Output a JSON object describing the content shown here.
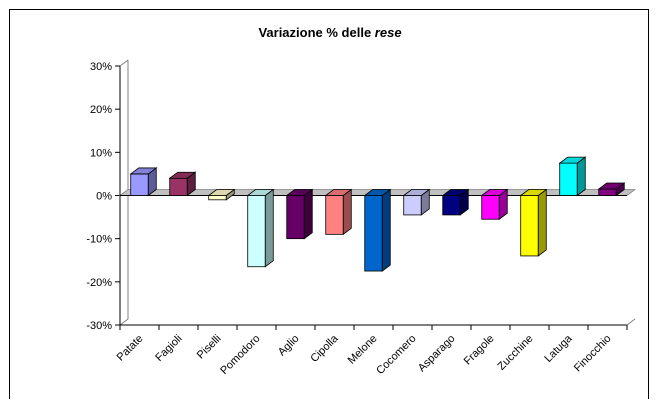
{
  "chart_data": {
    "type": "bar",
    "title_main": "Variazione % delle",
    "title_emph": "rese",
    "xlabel": "",
    "ylabel": "",
    "ylim": [
      -0.3,
      0.3
    ],
    "yticks": [
      "30%",
      "20%",
      "10%",
      "0%",
      "-10%",
      "-20%",
      "-30%"
    ],
    "ytick_values": [
      0.3,
      0.2,
      0.1,
      0.0,
      -0.1,
      -0.2,
      -0.3
    ],
    "grid": false,
    "legend": "none",
    "categories": [
      "Patate",
      "Fagioli",
      "Piselli",
      "Pomodoro",
      "Aglio",
      "Cipolla",
      "Melone",
      "Cocomero",
      "Asparago",
      "Fragole",
      "Zucchine",
      "Latuga",
      "Finocchio"
    ],
    "values": [
      0.05,
      0.04,
      -0.01,
      -0.165,
      -0.1,
      -0.09,
      -0.175,
      -0.045,
      -0.045,
      -0.055,
      -0.14,
      0.075,
      0.015
    ],
    "colors": [
      "#9999ff",
      "#993366",
      "#ffffcc",
      "#ccffff",
      "#660066",
      "#ff8080",
      "#0066cc",
      "#ccccff",
      "#000080",
      "#ff00ff",
      "#ffff00",
      "#00ffff",
      "#800080"
    ]
  }
}
